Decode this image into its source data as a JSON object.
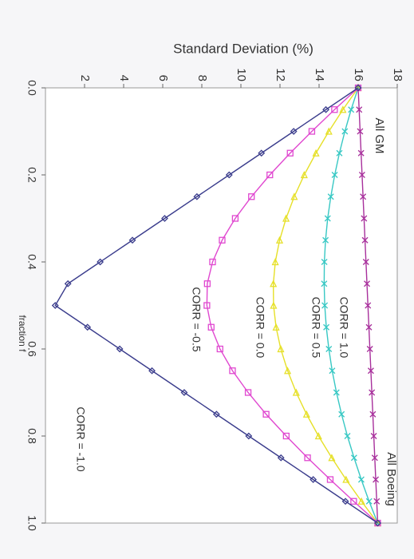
{
  "chart_data": {
    "type": "line",
    "y_label": "Standard Deviation (%)",
    "x_label": "fraction f",
    "x": [
      0,
      0.05,
      0.1,
      0.15,
      0.2,
      0.25,
      0.3,
      0.35,
      0.4,
      0.45,
      0.5,
      0.55,
      0.6,
      0.65,
      0.7,
      0.75,
      0.8,
      0.85,
      0.9,
      0.95,
      1
    ],
    "xlim": [
      0,
      1
    ],
    "xticks": [
      {
        "value": 0,
        "label": "0.0"
      },
      0.2,
      0.4,
      0.6,
      0.8,
      {
        "value": 1,
        "label": "1.0"
      }
    ],
    "ylim": [
      0,
      18
    ],
    "yticks": [
      2,
      4,
      6,
      8,
      10,
      12,
      14,
      16,
      18
    ],
    "annotations": [
      "All GM",
      "All Boeing"
    ],
    "series": [
      {
        "name": "CORR = 1.0",
        "color": "#a8309c",
        "marker": "x",
        "values": [
          16,
          16.05,
          16.1,
          16.15,
          16.2,
          16.25,
          16.3,
          16.35,
          16.4,
          16.45,
          16.5,
          16.55,
          16.6,
          16.65,
          16.7,
          16.75,
          16.8,
          16.85,
          16.9,
          16.95,
          17
        ]
      },
      {
        "name": "CORR = 0.5",
        "color": "#38c8c4",
        "marker": "x",
        "values": [
          16,
          15.64,
          15.32,
          15.04,
          14.8,
          14.6,
          14.44,
          14.33,
          14.27,
          14.26,
          14.29,
          14.37,
          14.5,
          14.67,
          14.89,
          15.15,
          15.45,
          15.79,
          16.16,
          16.56,
          17
        ]
      },
      {
        "name": "CORR = 0.0",
        "color": "#e6e028",
        "marker": "triangle",
        "values": [
          16,
          15.22,
          14.5,
          13.84,
          13.24,
          12.73,
          12.31,
          11.98,
          11.76,
          11.66,
          11.67,
          11.8,
          12.04,
          12.39,
          12.83,
          13.36,
          13.97,
          14.65,
          15.38,
          16.17,
          17
        ]
      },
      {
        "name": "CORR = -0.5",
        "color": "#e048d0",
        "marker": "square",
        "values": [
          16,
          14.79,
          13.63,
          12.52,
          11.48,
          10.54,
          9.71,
          9.04,
          8.55,
          8.28,
          8.26,
          8.48,
          8.93,
          9.57,
          10.37,
          11.29,
          12.32,
          13.41,
          14.57,
          15.77,
          17
        ]
      },
      {
        "name": "CORR = -1.0",
        "color": "#3a3c8c",
        "marker": "diamond",
        "values": [
          16,
          14.35,
          12.7,
          11.05,
          9.4,
          7.75,
          6.1,
          4.45,
          2.8,
          1.15,
          0.5,
          2.15,
          3.8,
          5.45,
          7.1,
          8.75,
          10.4,
          12.05,
          13.7,
          15.35,
          17
        ]
      }
    ]
  }
}
